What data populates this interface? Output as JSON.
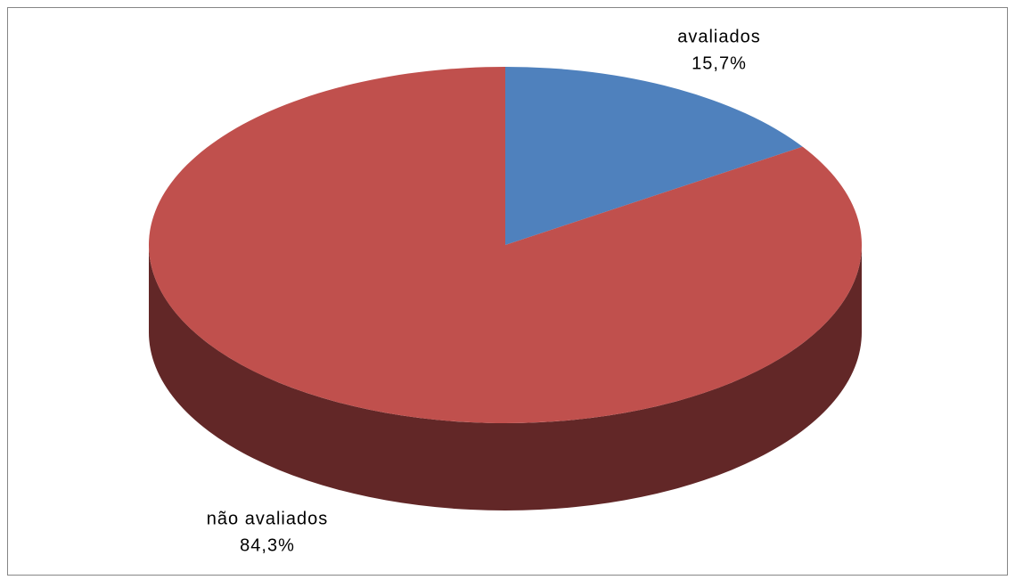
{
  "chart_data": {
    "type": "pie",
    "categories": [
      "avaliados",
      "não avaliados"
    ],
    "values": [
      15.7,
      84.3
    ],
    "value_labels": [
      "15,7%",
      "84,3%"
    ],
    "colors": [
      "#4f81bd",
      "#c0504d"
    ],
    "side_colors": [
      "#2c4a6e",
      "#622727"
    ]
  }
}
